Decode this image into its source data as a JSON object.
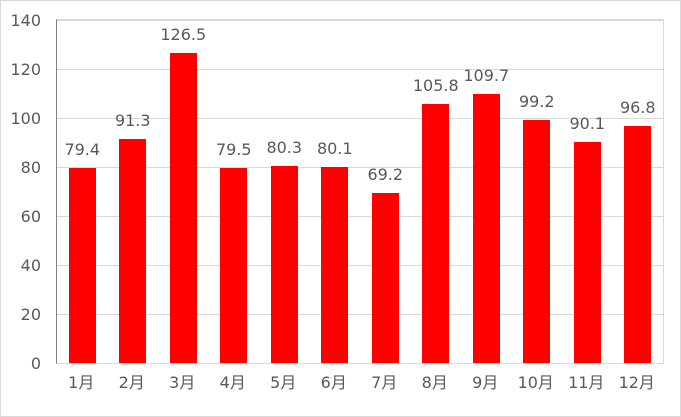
{
  "chart_data": {
    "type": "bar",
    "title": "",
    "xlabel": "",
    "ylabel": "",
    "categories": [
      "1月",
      "2月",
      "3月",
      "4月",
      "5月",
      "6月",
      "7月",
      "8月",
      "9月",
      "10月",
      "11月",
      "12月"
    ],
    "values": [
      79.4,
      91.3,
      126.5,
      79.5,
      80.3,
      80.1,
      69.2,
      105.8,
      109.7,
      99.2,
      90.1,
      96.8
    ],
    "value_label_decimals": 1,
    "ylim": [
      0,
      140
    ],
    "yticks": [
      0,
      20,
      40,
      60,
      80,
      100,
      120,
      140
    ],
    "grid": true,
    "legend": false,
    "data_labels": true
  },
  "colors": {
    "bar": "#ff0000",
    "label_text": "#595959",
    "gridline": "#d9d9d9",
    "value_axis_line": "#808080",
    "plot_border": "#d9d9d9",
    "chart_border": "#d9d9d9",
    "background": "#ffffff"
  }
}
